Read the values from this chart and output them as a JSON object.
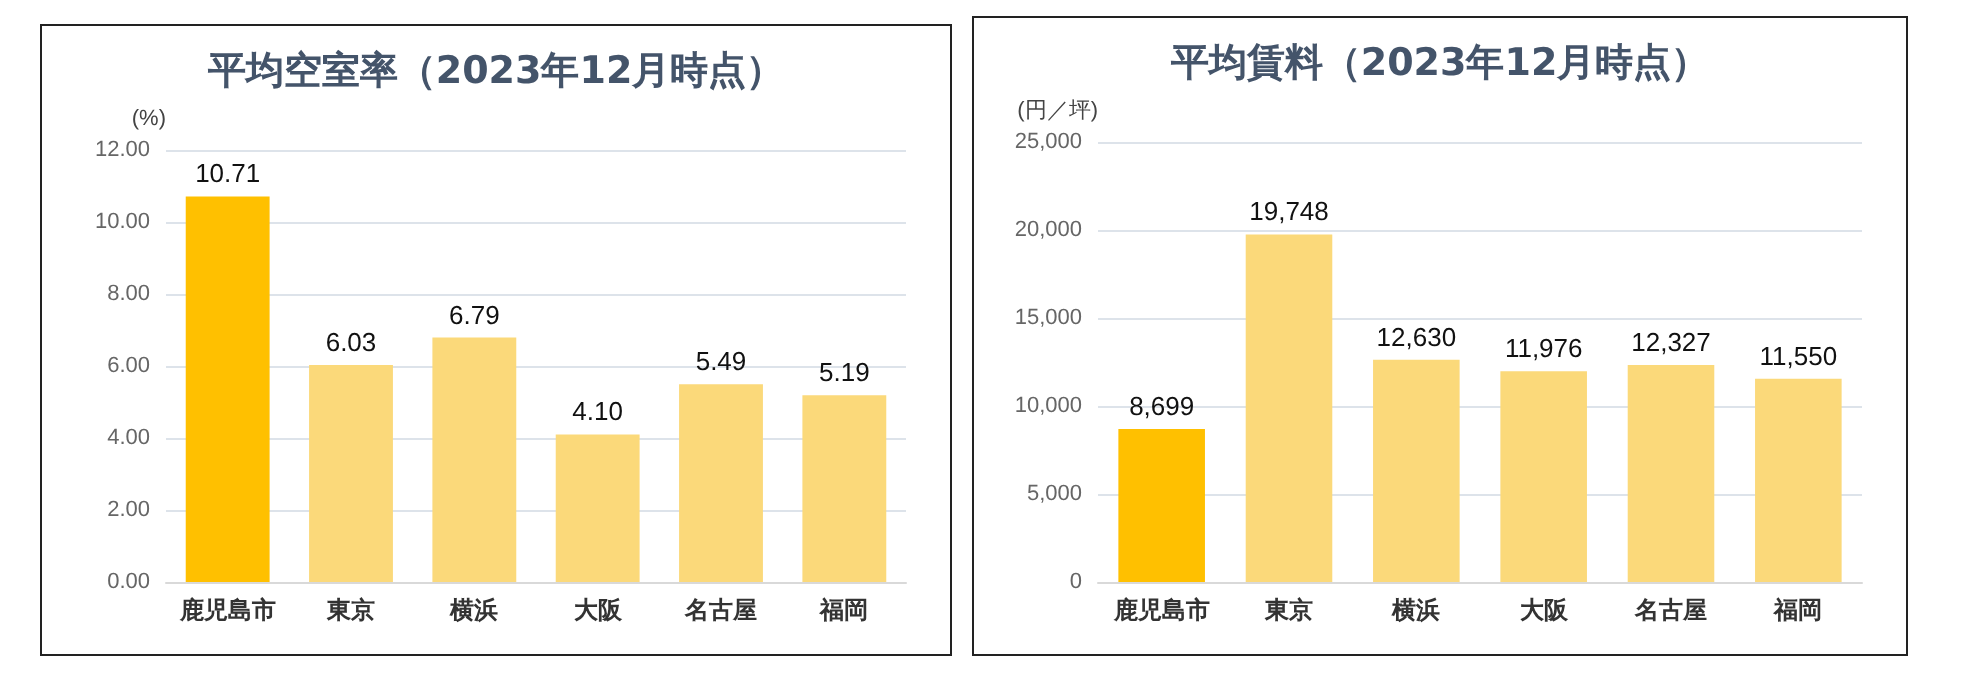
{
  "chart_data": [
    {
      "type": "bar",
      "title": "平均空室率（2023年12月時点）",
      "ylabel": "(%)",
      "categories": [
        "鹿児島市",
        "東京",
        "横浜",
        "大阪",
        "名古屋",
        "福岡"
      ],
      "values": [
        10.71,
        6.03,
        6.79,
        4.1,
        5.49,
        5.19
      ],
      "value_labels": [
        "10.71",
        "6.03",
        "6.79",
        "4.10",
        "5.49",
        "5.19"
      ],
      "colors": [
        "#ffc000",
        "#fbd97a",
        "#fbd97a",
        "#fbd97a",
        "#fbd97a",
        "#fbd97a"
      ],
      "ylim": [
        0,
        12
      ],
      "yticks": [
        {
          "value": 0,
          "label": "0.00"
        },
        {
          "value": 2,
          "label": "2.00"
        },
        {
          "value": 4,
          "label": "4.00"
        },
        {
          "value": 6,
          "label": "6.00"
        },
        {
          "value": 8,
          "label": "8.00"
        },
        {
          "value": 10,
          "label": "10.00"
        },
        {
          "value": 12,
          "label": "12.00"
        }
      ],
      "grid": "y"
    },
    {
      "type": "bar",
      "title": "平均賃料（2023年12月時点）",
      "ylabel": "(円／坪)",
      "categories": [
        "鹿児島市",
        "東京",
        "横浜",
        "大阪",
        "名古屋",
        "福岡"
      ],
      "values": [
        8699,
        19748,
        12630,
        11976,
        12327,
        11550
      ],
      "value_labels": [
        "8,699",
        "19,748",
        "12,630",
        "11,976",
        "12,327",
        "11,550"
      ],
      "colors": [
        "#ffc000",
        "#fbd97a",
        "#fbd97a",
        "#fbd97a",
        "#fbd97a",
        "#fbd97a"
      ],
      "ylim": [
        0,
        25000
      ],
      "yticks": [
        0,
        {
          "value": 5000,
          "label": "5,000"
        },
        {
          "value": 10000,
          "label": "10,000"
        },
        {
          "value": 15000,
          "label": "15,000"
        },
        {
          "value": 20000,
          "label": "20,000"
        },
        {
          "value": 25000,
          "label": "25,000"
        }
      ],
      "grid": "y"
    }
  ]
}
